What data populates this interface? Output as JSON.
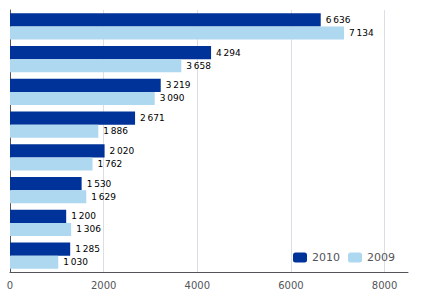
{
  "chart_data": {
    "type": "bar",
    "orientation": "horizontal",
    "categories": [
      null,
      null,
      null,
      null,
      null,
      null,
      null,
      null
    ],
    "series": [
      {
        "name": "2010",
        "color": "#003399",
        "values": [
          6636,
          4294,
          3219,
          2671,
          2020,
          1530,
          1200,
          1285
        ],
        "value_labels": [
          "6 636",
          "4 294",
          "3 219",
          "2 671",
          "2 020",
          "1 530",
          "1 200",
          "1 285"
        ]
      },
      {
        "name": "2009",
        "color": "#add8f0",
        "values": [
          7134,
          3658,
          3090,
          1886,
          1762,
          1629,
          1306,
          1030
        ],
        "value_labels": [
          "7 134",
          "3 658",
          "3 090",
          "1 886",
          "1 762",
          "1 629",
          "1 306",
          "1 030"
        ]
      }
    ],
    "xlim": [
      0,
      8500
    ],
    "xticks": [
      0,
      2000,
      4000,
      6000,
      8000
    ],
    "grid": true,
    "legend": "lower right",
    "data_labels": true,
    "tick_labels": "x"
  }
}
